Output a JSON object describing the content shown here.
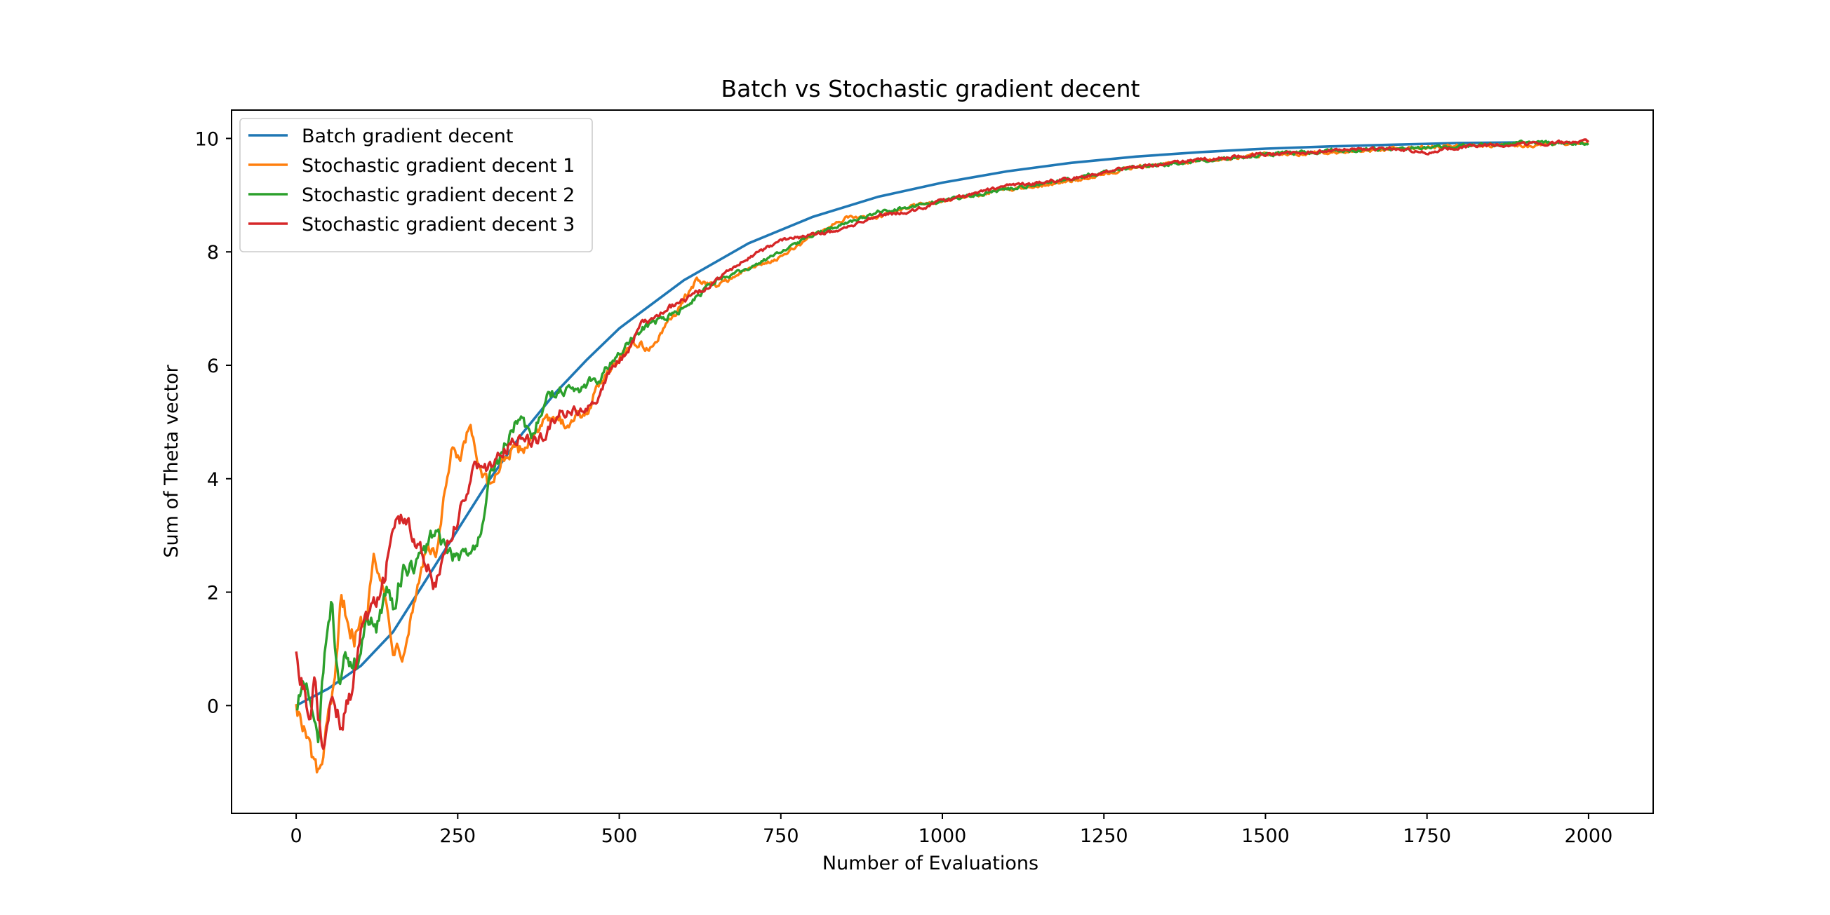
{
  "chart_data": {
    "type": "line",
    "title": "Batch vs Stochastic gradient decent",
    "xlabel": "Number of Evaluations",
    "ylabel": "Sum of Theta vector",
    "xlim": [
      -100,
      2100
    ],
    "ylim": [
      -1.9,
      10.5
    ],
    "xticks": [
      0,
      250,
      500,
      750,
      1000,
      1250,
      1500,
      1750,
      2000
    ],
    "yticks": [
      0,
      2,
      4,
      6,
      8,
      10
    ],
    "grid": false,
    "legend_position": "top-left",
    "series": [
      {
        "name": "Batch gradient decent",
        "color": "#1f77b4",
        "style": "smooth",
        "points": [
          [
            0,
            0
          ],
          [
            50,
            0.3
          ],
          [
            100,
            0.7
          ],
          [
            150,
            1.3
          ],
          [
            200,
            2.2
          ],
          [
            250,
            3.1
          ],
          [
            300,
            4.0
          ],
          [
            350,
            4.8
          ],
          [
            400,
            5.5
          ],
          [
            450,
            6.1
          ],
          [
            500,
            6.65
          ],
          [
            600,
            7.5
          ],
          [
            700,
            8.15
          ],
          [
            800,
            8.62
          ],
          [
            900,
            8.97
          ],
          [
            1000,
            9.22
          ],
          [
            1100,
            9.42
          ],
          [
            1200,
            9.57
          ],
          [
            1300,
            9.68
          ],
          [
            1400,
            9.76
          ],
          [
            1500,
            9.82
          ],
          [
            1600,
            9.86
          ],
          [
            1700,
            9.89
          ],
          [
            1800,
            9.92
          ],
          [
            1900,
            9.93
          ]
        ]
      },
      {
        "name": "Stochastic gradient decent 1",
        "color": "#ff7f0e",
        "style": "noisy",
        "points": [
          [
            0,
            0.1
          ],
          [
            10,
            -0.4
          ],
          [
            25,
            -0.9
          ],
          [
            35,
            -1.3
          ],
          [
            45,
            -0.6
          ],
          [
            60,
            0.3
          ],
          [
            70,
            1.9
          ],
          [
            90,
            1.2
          ],
          [
            110,
            1.6
          ],
          [
            120,
            2.9
          ],
          [
            135,
            2.0
          ],
          [
            150,
            1.1
          ],
          [
            165,
            1.0
          ],
          [
            180,
            1.7
          ],
          [
            190,
            2.2
          ],
          [
            200,
            2.8
          ],
          [
            215,
            2.6
          ],
          [
            240,
            4.4
          ],
          [
            255,
            4.3
          ],
          [
            270,
            5.0
          ],
          [
            280,
            4.2
          ],
          [
            300,
            3.8
          ],
          [
            320,
            4.4
          ],
          [
            350,
            4.5
          ],
          [
            380,
            5.0
          ],
          [
            420,
            5.0
          ],
          [
            450,
            5.2
          ],
          [
            480,
            5.9
          ],
          [
            520,
            6.4
          ],
          [
            550,
            6.3
          ],
          [
            580,
            6.8
          ],
          [
            620,
            7.5
          ],
          [
            650,
            7.4
          ],
          [
            700,
            7.7
          ],
          [
            750,
            7.9
          ],
          [
            800,
            8.3
          ],
          [
            850,
            8.6
          ],
          [
            900,
            8.6
          ],
          [
            950,
            8.8
          ],
          [
            1000,
            8.9
          ],
          [
            1100,
            9.1
          ],
          [
            1200,
            9.25
          ],
          [
            1300,
            9.5
          ],
          [
            1400,
            9.6
          ],
          [
            1500,
            9.72
          ],
          [
            1600,
            9.75
          ],
          [
            1700,
            9.82
          ],
          [
            1800,
            9.88
          ],
          [
            1900,
            9.88
          ],
          [
            2000,
            9.93
          ]
        ]
      },
      {
        "name": "Stochastic gradient decent 2",
        "color": "#2ca02c",
        "style": "noisy",
        "points": [
          [
            0,
            0
          ],
          [
            15,
            0.4
          ],
          [
            25,
            -0.3
          ],
          [
            35,
            -0.8
          ],
          [
            45,
            1.1
          ],
          [
            55,
            1.8
          ],
          [
            65,
            0.5
          ],
          [
            80,
            0.9
          ],
          [
            95,
            0.7
          ],
          [
            110,
            1.5
          ],
          [
            125,
            1.4
          ],
          [
            140,
            2.0
          ],
          [
            150,
            1.7
          ],
          [
            165,
            2.4
          ],
          [
            180,
            2.4
          ],
          [
            200,
            2.7
          ],
          [
            215,
            3.1
          ],
          [
            240,
            2.6
          ],
          [
            260,
            2.7
          ],
          [
            280,
            2.8
          ],
          [
            300,
            4.0
          ],
          [
            320,
            4.5
          ],
          [
            345,
            5.1
          ],
          [
            365,
            4.8
          ],
          [
            390,
            5.5
          ],
          [
            420,
            5.6
          ],
          [
            440,
            5.6
          ],
          [
            470,
            5.8
          ],
          [
            500,
            6.2
          ],
          [
            530,
            6.6
          ],
          [
            560,
            6.8
          ],
          [
            600,
            7.0
          ],
          [
            650,
            7.5
          ],
          [
            700,
            7.7
          ],
          [
            750,
            8.0
          ],
          [
            800,
            8.3
          ],
          [
            850,
            8.5
          ],
          [
            900,
            8.7
          ],
          [
            1000,
            8.9
          ],
          [
            1100,
            9.1
          ],
          [
            1200,
            9.3
          ],
          [
            1300,
            9.5
          ],
          [
            1400,
            9.6
          ],
          [
            1500,
            9.72
          ],
          [
            1600,
            9.78
          ],
          [
            1700,
            9.82
          ],
          [
            1800,
            9.86
          ],
          [
            1900,
            9.92
          ],
          [
            2000,
            9.92
          ]
        ]
      },
      {
        "name": "Stochastic gradient decent 3",
        "color": "#d62728",
        "style": "noisy",
        "points": [
          [
            0,
            1.0
          ],
          [
            10,
            0.3
          ],
          [
            20,
            -0.2
          ],
          [
            30,
            0.5
          ],
          [
            40,
            -0.8
          ],
          [
            55,
            0.2
          ],
          [
            70,
            -0.4
          ],
          [
            85,
            0.2
          ],
          [
            100,
            1.3
          ],
          [
            115,
            1.7
          ],
          [
            135,
            2.2
          ],
          [
            155,
            3.4
          ],
          [
            175,
            3.1
          ],
          [
            195,
            2.8
          ],
          [
            215,
            2.1
          ],
          [
            240,
            3.0
          ],
          [
            255,
            3.5
          ],
          [
            275,
            4.2
          ],
          [
            300,
            4.2
          ],
          [
            320,
            4.5
          ],
          [
            345,
            4.7
          ],
          [
            365,
            4.6
          ],
          [
            385,
            4.8
          ],
          [
            410,
            5.2
          ],
          [
            440,
            5.2
          ],
          [
            465,
            5.4
          ],
          [
            490,
            6.0
          ],
          [
            510,
            6.2
          ],
          [
            540,
            6.8
          ],
          [
            575,
            7.0
          ],
          [
            610,
            7.2
          ],
          [
            650,
            7.5
          ],
          [
            700,
            7.9
          ],
          [
            750,
            8.2
          ],
          [
            800,
            8.3
          ],
          [
            850,
            8.4
          ],
          [
            900,
            8.65
          ],
          [
            950,
            8.7
          ],
          [
            1000,
            8.9
          ],
          [
            1100,
            9.15
          ],
          [
            1200,
            9.3
          ],
          [
            1300,
            9.5
          ],
          [
            1400,
            9.62
          ],
          [
            1500,
            9.72
          ],
          [
            1600,
            9.78
          ],
          [
            1700,
            9.82
          ],
          [
            1750,
            9.76
          ],
          [
            1800,
            9.85
          ],
          [
            1900,
            9.9
          ],
          [
            2000,
            9.95
          ]
        ]
      }
    ]
  }
}
